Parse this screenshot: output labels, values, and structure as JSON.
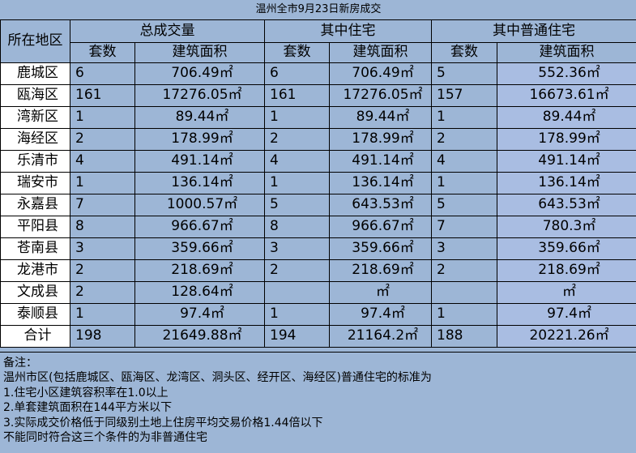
{
  "title": "温州全市9月23日新房成交",
  "headers": {
    "area": "所在地区",
    "groups": [
      "总成交量",
      "其中住宅",
      "其中普通住宅"
    ],
    "count": "套数",
    "floor_area": "建筑面积"
  },
  "rows": [
    {
      "area": "鹿城区",
      "total_count": "6",
      "total_area": "706.49㎡",
      "res_count": "6",
      "res_area": "706.49㎡",
      "ord_count": "5",
      "ord_area": "552.36㎡"
    },
    {
      "area": "瓯海区",
      "total_count": "161",
      "total_area": "17276.05㎡",
      "res_count": "161",
      "res_area": "17276.05㎡",
      "ord_count": "157",
      "ord_area": "16673.61㎡"
    },
    {
      "area": "湾新区",
      "total_count": "1",
      "total_area": "89.44㎡",
      "res_count": "1",
      "res_area": "89.44㎡",
      "ord_count": "1",
      "ord_area": "89.44㎡"
    },
    {
      "area": "海经区",
      "total_count": "2",
      "total_area": "178.99㎡",
      "res_count": "2",
      "res_area": "178.99㎡",
      "ord_count": "2",
      "ord_area": "178.99㎡"
    },
    {
      "area": "乐清市",
      "total_count": "4",
      "total_area": "491.14㎡",
      "res_count": "4",
      "res_area": "491.14㎡",
      "ord_count": "4",
      "ord_area": "491.14㎡"
    },
    {
      "area": "瑞安市",
      "total_count": "1",
      "total_area": "136.14㎡",
      "res_count": "1",
      "res_area": "136.14㎡",
      "ord_count": "1",
      "ord_area": "136.14㎡"
    },
    {
      "area": "永嘉县",
      "total_count": "7",
      "total_area": "1000.57㎡",
      "res_count": "5",
      "res_area": "643.53㎡",
      "ord_count": "5",
      "ord_area": "643.53㎡"
    },
    {
      "area": "平阳县",
      "total_count": "8",
      "total_area": "966.67㎡",
      "res_count": "8",
      "res_area": "966.67㎡",
      "ord_count": "7",
      "ord_area": "780.3㎡"
    },
    {
      "area": "苍南县",
      "total_count": "3",
      "total_area": "359.66㎡",
      "res_count": "3",
      "res_area": "359.66㎡",
      "ord_count": "3",
      "ord_area": "359.66㎡"
    },
    {
      "area": "龙港市",
      "total_count": "2",
      "total_area": "218.69㎡",
      "res_count": "2",
      "res_area": "218.69㎡",
      "ord_count": "2",
      "ord_area": "218.69㎡"
    },
    {
      "area": "文成县",
      "total_count": "2",
      "total_area": "128.64㎡",
      "res_count": "",
      "res_area": "㎡",
      "ord_count": "",
      "ord_area": "㎡"
    },
    {
      "area": "泰顺县",
      "total_count": "1",
      "total_area": "97.4㎡",
      "res_count": "1",
      "res_area": "97.4㎡",
      "ord_count": "1",
      "ord_area": "97.4㎡"
    },
    {
      "area": "合计",
      "total_count": "198",
      "total_area": "21649.88㎡",
      "res_count": "194",
      "res_area": "21164.2㎡",
      "ord_count": "188",
      "ord_area": "20221.26㎡"
    }
  ],
  "notes": [
    "备注：",
    "温州市区(包括鹿城区、瓯海区、龙湾区、洞头区、经开区、海经区)普通住宅的标准为",
    "1.住宅小区建筑容积率在1.0以上",
    "2.单套建筑面积在144平方米以下",
    "3.实际成交价格低于同级别土地上住房平均交易价格1.44倍以下",
    "不能同时符合这三个条件的为非普通住宅"
  ],
  "colors": {
    "background": "#9db6d6",
    "area_column": "#ffffff",
    "ordinary_area_column": "#a9bde2"
  }
}
